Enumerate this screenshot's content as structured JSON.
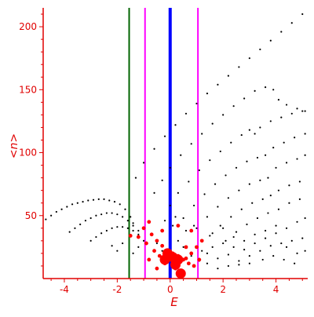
{
  "chart_data": {
    "type": "scatter",
    "title": "",
    "xlabel": "E",
    "ylabel": "<n>",
    "xlim": [
      -4.8,
      5.2
    ],
    "ylim": [
      0,
      215
    ],
    "xticks": [
      -4,
      -2,
      0,
      2,
      4
    ],
    "yticks": [
      50,
      100,
      150,
      200
    ],
    "grid": false,
    "legend": "none",
    "colors": {
      "axis": "#e00000",
      "dots": "#000000",
      "highlight": "#ff0000",
      "line_green": "#006400",
      "line_magenta": "#ff00ff",
      "line_blue": "#0000ff"
    },
    "vertical_lines": [
      {
        "x": -1.55,
        "color": "#006400"
      },
      {
        "x": -0.95,
        "color": "#ff00ff"
      },
      {
        "x": 0.0,
        "color": "#0000ff",
        "bold": true
      },
      {
        "x": 1.05,
        "color": "#ff00ff"
      }
    ],
    "dot_series": [
      {
        "style": "black",
        "points": [
          [
            -4.7,
            47
          ],
          [
            -4.5,
            50
          ],
          [
            -4.3,
            53
          ],
          [
            -4.1,
            55
          ],
          [
            -3.9,
            57
          ],
          [
            -3.7,
            59
          ],
          [
            -3.5,
            60
          ],
          [
            -3.3,
            61
          ],
          [
            -3.1,
            62
          ],
          [
            -2.9,
            62.5
          ],
          [
            -2.7,
            63
          ],
          [
            -2.5,
            63
          ],
          [
            -2.3,
            62
          ],
          [
            -2.1,
            61
          ],
          [
            -1.9,
            59
          ],
          [
            -1.7,
            55
          ],
          [
            -1.5,
            49
          ],
          [
            -1.4,
            44
          ]
        ]
      },
      {
        "style": "black",
        "points": [
          [
            -3.8,
            37
          ],
          [
            -3.6,
            40
          ],
          [
            -3.4,
            43
          ],
          [
            -3.2,
            46
          ],
          [
            -3.0,
            48
          ],
          [
            -2.8,
            50
          ],
          [
            -2.6,
            51
          ],
          [
            -2.4,
            52
          ],
          [
            -2.2,
            52
          ],
          [
            -2.0,
            51
          ],
          [
            -1.8,
            49
          ],
          [
            -1.6,
            46
          ],
          [
            -1.4,
            42
          ],
          [
            -1.2,
            38
          ]
        ]
      },
      {
        "style": "black",
        "points": [
          [
            -3.0,
            30
          ],
          [
            -2.8,
            33
          ],
          [
            -2.6,
            36
          ],
          [
            -2.4,
            38
          ],
          [
            -2.2,
            40
          ],
          [
            -2.0,
            41
          ],
          [
            -1.8,
            41
          ],
          [
            -1.6,
            40
          ],
          [
            -1.4,
            38
          ],
          [
            -1.2,
            35
          ]
        ]
      },
      {
        "style": "black",
        "points": [
          [
            -1.3,
            80
          ],
          [
            -1.0,
            92
          ],
          [
            -0.6,
            103
          ],
          [
            -0.2,
            113
          ],
          [
            0.2,
            122
          ],
          [
            0.6,
            131
          ],
          [
            1.0,
            139
          ],
          [
            1.4,
            147
          ],
          [
            1.8,
            154
          ],
          [
            2.2,
            161
          ],
          [
            2.6,
            168
          ],
          [
            3.0,
            175
          ],
          [
            3.4,
            182
          ],
          [
            3.8,
            189
          ],
          [
            4.2,
            196
          ],
          [
            4.6,
            203
          ],
          [
            5.0,
            210
          ]
        ]
      },
      {
        "style": "black",
        "points": [
          [
            -0.6,
            68
          ],
          [
            -0.3,
            78
          ],
          [
            0.0,
            88
          ],
          [
            0.4,
            98
          ],
          [
            0.8,
            107
          ],
          [
            1.2,
            115
          ],
          [
            1.6,
            123
          ],
          [
            2.0,
            130
          ],
          [
            2.4,
            137
          ],
          [
            2.8,
            143
          ],
          [
            3.2,
            149
          ],
          [
            3.6,
            152
          ],
          [
            3.9,
            150
          ],
          [
            4.1,
            142
          ],
          [
            4.4,
            138
          ],
          [
            4.8,
            135
          ],
          [
            5.1,
            133
          ]
        ]
      },
      {
        "style": "black",
        "points": [
          [
            0.0,
            58
          ],
          [
            0.3,
            68
          ],
          [
            0.7,
            77
          ],
          [
            1.1,
            86
          ],
          [
            1.5,
            94
          ],
          [
            1.9,
            101
          ],
          [
            2.3,
            108
          ],
          [
            2.7,
            114
          ],
          [
            3.0,
            118
          ],
          [
            3.2,
            115
          ],
          [
            3.4,
            120
          ],
          [
            3.8,
            125
          ],
          [
            4.2,
            128
          ],
          [
            4.6,
            131
          ],
          [
            5.0,
            133
          ]
        ]
      },
      {
        "style": "black",
        "points": [
          [
            0.5,
            48
          ],
          [
            0.9,
            58
          ],
          [
            1.3,
            67
          ],
          [
            1.7,
            75
          ],
          [
            2.1,
            82
          ],
          [
            2.5,
            88
          ],
          [
            2.9,
            93
          ],
          [
            3.3,
            96
          ],
          [
            3.6,
            98
          ],
          [
            3.9,
            104
          ],
          [
            4.3,
            108
          ],
          [
            4.7,
            112
          ],
          [
            5.1,
            115
          ]
        ]
      },
      {
        "style": "black",
        "points": [
          [
            1.0,
            40
          ],
          [
            1.4,
            49
          ],
          [
            1.8,
            57
          ],
          [
            2.2,
            64
          ],
          [
            2.6,
            70
          ],
          [
            3.0,
            75
          ],
          [
            3.4,
            78
          ],
          [
            3.7,
            80
          ],
          [
            4.0,
            88
          ],
          [
            4.4,
            92
          ],
          [
            4.8,
            95
          ],
          [
            5.1,
            98
          ]
        ]
      },
      {
        "style": "black",
        "points": [
          [
            1.5,
            34
          ],
          [
            1.9,
            42
          ],
          [
            2.3,
            49
          ],
          [
            2.7,
            55
          ],
          [
            3.1,
            60
          ],
          [
            3.5,
            63
          ],
          [
            3.8,
            66
          ],
          [
            4.1,
            70
          ],
          [
            4.5,
            74
          ],
          [
            4.9,
            77
          ]
        ]
      },
      {
        "style": "black",
        "points": [
          [
            2.1,
            30
          ],
          [
            2.5,
            37
          ],
          [
            2.9,
            43
          ],
          [
            3.3,
            48
          ],
          [
            3.7,
            52
          ],
          [
            4.1,
            55
          ],
          [
            4.5,
            60
          ],
          [
            4.9,
            63
          ]
        ]
      },
      {
        "style": "black",
        "points": [
          [
            1.2,
            22
          ],
          [
            1.6,
            25
          ],
          [
            2.0,
            28
          ],
          [
            2.4,
            25
          ],
          [
            2.8,
            23
          ],
          [
            3.2,
            28
          ],
          [
            3.6,
            32
          ],
          [
            4.0,
            36
          ],
          [
            4.4,
            40
          ],
          [
            4.8,
            45
          ],
          [
            5.1,
            48
          ]
        ]
      },
      {
        "style": "black",
        "points": [
          [
            0.8,
            18
          ],
          [
            1.1,
            14
          ],
          [
            1.4,
            20
          ],
          [
            1.8,
            16
          ],
          [
            2.2,
            19
          ],
          [
            2.6,
            14
          ],
          [
            3.0,
            18
          ],
          [
            3.4,
            22
          ],
          [
            3.8,
            26
          ],
          [
            4.2,
            28
          ],
          [
            4.6,
            30
          ],
          [
            5.0,
            32
          ]
        ]
      },
      {
        "style": "black",
        "points": [
          [
            -0.7,
            35
          ],
          [
            -0.5,
            28
          ],
          [
            -0.3,
            22
          ],
          [
            0.3,
            30
          ],
          [
            0.6,
            38
          ],
          [
            0.9,
            42
          ],
          [
            0.5,
            25
          ],
          [
            0.1,
            42
          ],
          [
            -0.2,
            46
          ],
          [
            0.2,
            49
          ],
          [
            1.2,
            30
          ],
          [
            1.6,
            36
          ],
          [
            2.0,
            40
          ],
          [
            2.4,
            33
          ],
          [
            2.8,
            30
          ],
          [
            3.2,
            35
          ],
          [
            3.6,
            38
          ],
          [
            4.0,
            42
          ],
          [
            4.4,
            25
          ],
          [
            4.8,
            20
          ],
          [
            5.1,
            22
          ],
          [
            3.5,
            15
          ],
          [
            3.9,
            18
          ],
          [
            4.3,
            15
          ],
          [
            4.7,
            12
          ],
          [
            2.2,
            10
          ],
          [
            1.8,
            8
          ],
          [
            1.4,
            12
          ],
          [
            2.6,
            11
          ],
          [
            3.0,
            12
          ]
        ]
      },
      {
        "style": "black",
        "points": [
          [
            -1.4,
            20
          ],
          [
            -1.2,
            25
          ],
          [
            -1.0,
            30
          ],
          [
            -1.8,
            28
          ],
          [
            -2.0,
            22
          ],
          [
            -2.2,
            26
          ]
        ]
      },
      {
        "style": "red",
        "points": [
          [
            -1.2,
            33
          ],
          [
            -0.9,
            28
          ],
          [
            -0.7,
            35
          ],
          [
            -0.5,
            30
          ],
          [
            -0.3,
            26
          ],
          [
            -0.1,
            22
          ],
          [
            0.1,
            20
          ],
          [
            0.3,
            18
          ],
          [
            0.5,
            15
          ],
          [
            0.7,
            12
          ],
          [
            0.9,
            10
          ],
          [
            -0.4,
            18
          ],
          [
            -0.6,
            22
          ],
          [
            -0.8,
            15
          ],
          [
            0.2,
            8
          ],
          [
            0.4,
            5
          ],
          [
            0.6,
            16
          ],
          [
            -0.2,
            12
          ],
          [
            0.8,
            20
          ],
          [
            1.1,
            15
          ],
          [
            1.2,
            30
          ],
          [
            -1.0,
            40
          ],
          [
            -0.8,
            45
          ],
          [
            0.3,
            42
          ],
          [
            0.8,
            38
          ],
          [
            1.0,
            25
          ],
          [
            -1.5,
            34
          ],
          [
            -0.5,
            8
          ],
          [
            0.6,
            25
          ],
          [
            -0.3,
            38
          ]
        ]
      },
      {
        "style": "red-big",
        "points": [
          [
            -0.1,
            20
          ],
          [
            0.1,
            17
          ],
          [
            -0.2,
            15
          ],
          [
            0.3,
            15
          ],
          [
            0.4,
            4
          ],
          [
            0.2,
            11
          ]
        ]
      }
    ]
  }
}
